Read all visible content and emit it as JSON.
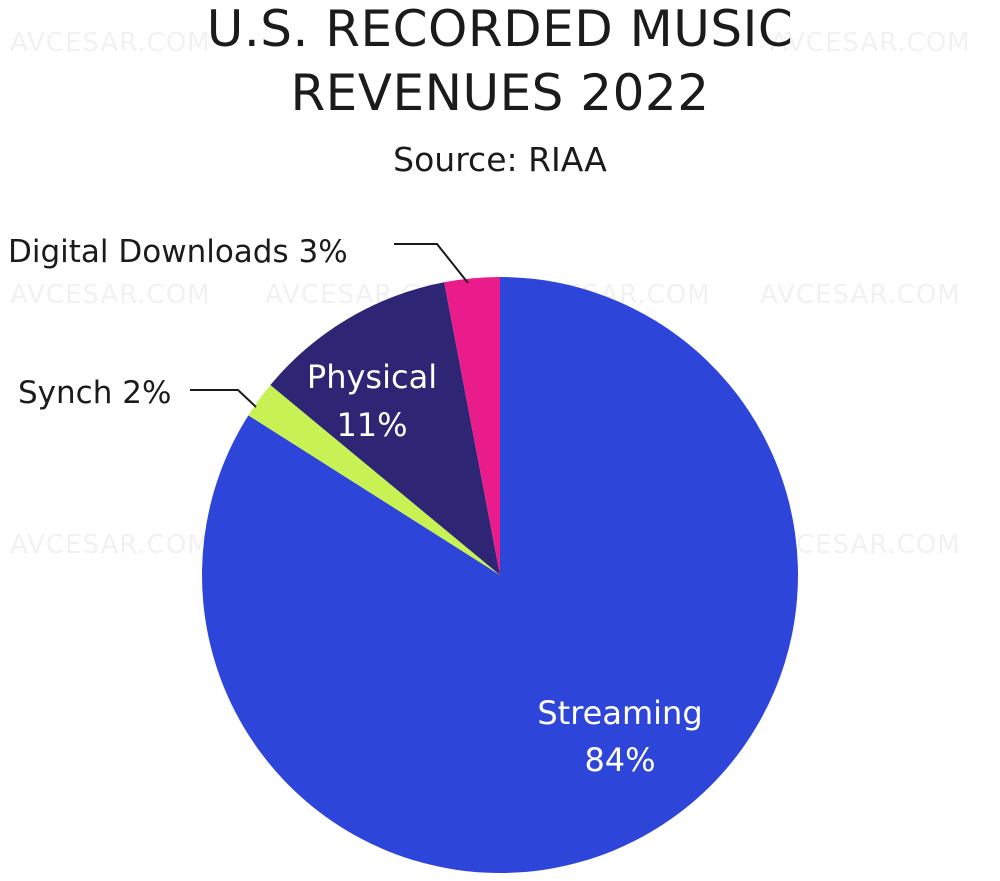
{
  "title_line1": "U.S. RECORDED MUSIC",
  "title_line2": "REVENUES 2022",
  "subtitle": "Source: RIAA",
  "watermark": "AVCESAR.COM",
  "chart_data": {
    "type": "pie",
    "title": "U.S. RECORDED MUSIC REVENUES 2022",
    "subtitle": "Source: RIAA",
    "start_angle_deg": 0,
    "direction": "clockwise",
    "slices": [
      {
        "label": "Streaming",
        "value": 84,
        "display": "84%",
        "color": "#2e45d9"
      },
      {
        "label": "Synch",
        "value": 2,
        "display": "2%",
        "color": "#c8f154"
      },
      {
        "label": "Physical",
        "value": 11,
        "display": "11%",
        "color": "#2e2575"
      },
      {
        "label": "Digital Downloads",
        "value": 3,
        "display": "3%",
        "color": "#ea1b8a"
      }
    ],
    "labels": {
      "streaming": {
        "name": "Streaming",
        "pct": "84%"
      },
      "physical": {
        "name": "Physical",
        "pct": "11%"
      },
      "synch": "Synch 2%",
      "downloads": "Digital Downloads 3%"
    }
  }
}
